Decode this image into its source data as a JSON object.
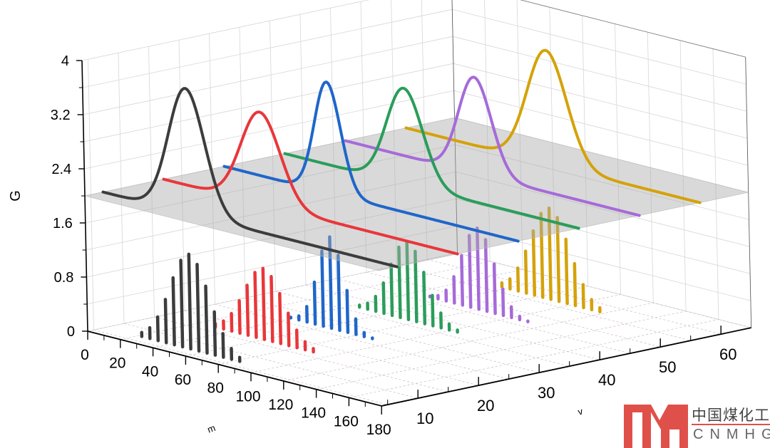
{
  "chart_data": {
    "type": "3d-line-and-bar",
    "xlabel": "m",
    "ylabel": "v",
    "zlabel": "G",
    "xlim": [
      0,
      180
    ],
    "ylim": [
      4,
      65
    ],
    "zlim": [
      0,
      4
    ],
    "x_ticks": [
      "0",
      "20",
      "40",
      "60",
      "80",
      "100",
      "120",
      "140",
      "160",
      "180"
    ],
    "y_ticks": [
      "10",
      "20",
      "30",
      "40",
      "50",
      "60"
    ],
    "z_ticks": [
      "0",
      "0.8",
      "1.6",
      "2.4",
      "3.2",
      "4"
    ],
    "grid": true,
    "plane_level": 2.0,
    "series": [
      {
        "color": "#3c3c3c",
        "y": 7,
        "curve_mean": 52,
        "curve_sigma": 11,
        "curve_peak": 3.85,
        "bar_x_start": 22,
        "bar_x_step": 5,
        "bars": [
          0.06,
          0.16,
          0.35,
          0.64,
          0.99,
          1.28,
          1.4,
          1.28,
          0.99,
          0.64,
          0.35,
          0.16,
          0.06
        ]
      },
      {
        "color": "#e8373a",
        "y": 17,
        "curve_mean": 60,
        "curve_sigma": 12,
        "curve_peak": 3.36,
        "bar_x_start": 30,
        "bar_x_step": 5,
        "bars": [
          0.05,
          0.12,
          0.26,
          0.48,
          0.74,
          0.96,
          1.05,
          0.96,
          0.74,
          0.48,
          0.26,
          0.12,
          0.05
        ]
      },
      {
        "color": "#1f66c9",
        "y": 27,
        "curve_mean": 64,
        "curve_sigma": 8,
        "curve_peak": 3.64,
        "bar_x_start": 39,
        "bar_x_step": 5,
        "bars": [
          0.01,
          0.06,
          0.23,
          0.62,
          1.11,
          1.35,
          1.11,
          0.62,
          0.23,
          0.06,
          0.01
        ]
      },
      {
        "color": "#2a9d5a",
        "y": 37,
        "curve_mean": 74,
        "curve_sigma": 11,
        "curve_peak": 3.42,
        "bar_x_start": 44,
        "bar_x_step": 5,
        "bars": [
          0.03,
          0.09,
          0.22,
          0.45,
          0.76,
          1.04,
          1.15,
          1.04,
          0.76,
          0.45,
          0.22,
          0.09,
          0.03
        ]
      },
      {
        "color": "#a66ad9",
        "y": 47,
        "curve_mean": 80,
        "curve_sigma": 10,
        "curve_peak": 3.43,
        "bar_x_start": 50,
        "bar_x_step": 5,
        "bars": [
          0.01,
          0.05,
          0.16,
          0.39,
          0.73,
          1.06,
          1.2,
          1.06,
          0.73,
          0.39,
          0.16,
          0.05,
          0.01
        ]
      },
      {
        "color": "#d4a20a",
        "y": 57,
        "curve_mean": 87,
        "curve_sigma": 12,
        "curve_peak": 3.68,
        "bar_x_start": 57,
        "bar_x_step": 5,
        "bars": [
          0.06,
          0.15,
          0.34,
          0.62,
          0.95,
          1.24,
          1.35,
          1.24,
          0.95,
          0.62,
          0.34,
          0.15,
          0.06
        ]
      }
    ]
  },
  "watermark": {
    "cn": "中国煤化工",
    "en": "CNMHG",
    "color": "#e0504a"
  }
}
